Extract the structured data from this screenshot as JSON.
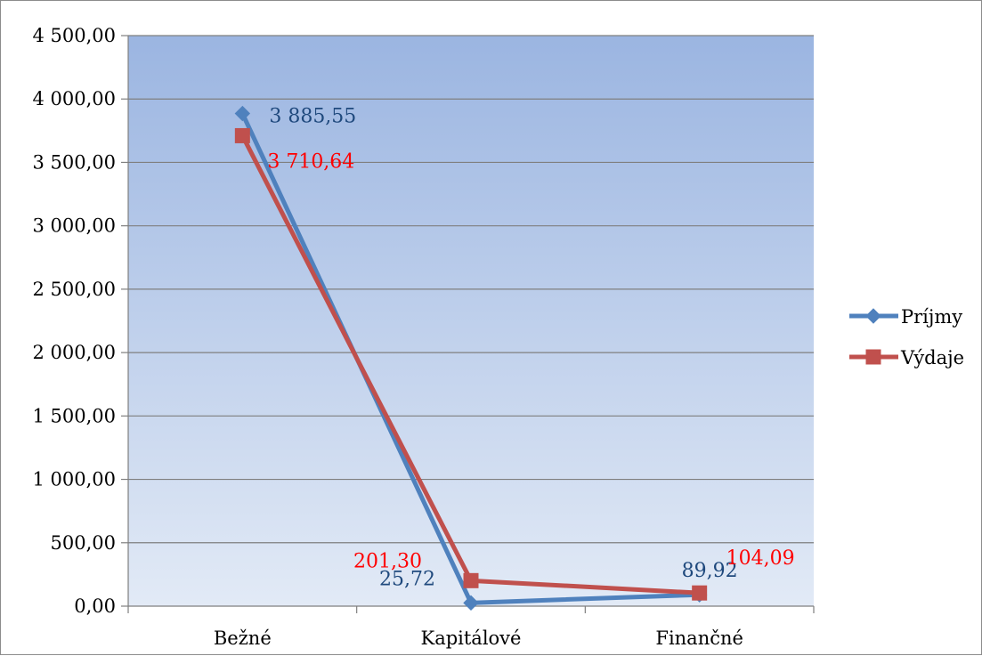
{
  "chart_data": {
    "type": "line",
    "categories": [
      "Bežné",
      "Kapitálové",
      "Finančné"
    ],
    "y_ticks": [
      "0,00",
      "500,00",
      "1 000,00",
      "1 500,00",
      "2 000,00",
      "2 500,00",
      "3 000,00",
      "3 500,00",
      "4 000,00",
      "4 500,00"
    ],
    "ylim": [
      0,
      4500
    ],
    "grid": true,
    "legend_position": "right",
    "series": [
      {
        "name": "Príjmy",
        "values": [
          3885.55,
          25.72,
          89.92
        ],
        "labels": [
          "3 885,55",
          "25,72",
          "89,92"
        ],
        "color": "#4f81bd",
        "label_color": "#1f497d",
        "marker": "diamond"
      },
      {
        "name": "Výdaje",
        "values": [
          3710.64,
          201.3,
          104.09
        ],
        "labels": [
          "3 710,64",
          "201,30",
          "104,09"
        ],
        "color": "#c0504d",
        "label_color": "#ff0000",
        "marker": "square"
      }
    ]
  },
  "colors": {
    "plot_top": "#9bb5e1",
    "plot_bottom": "#e2eaf6",
    "gridline": "#7f7f7f"
  }
}
